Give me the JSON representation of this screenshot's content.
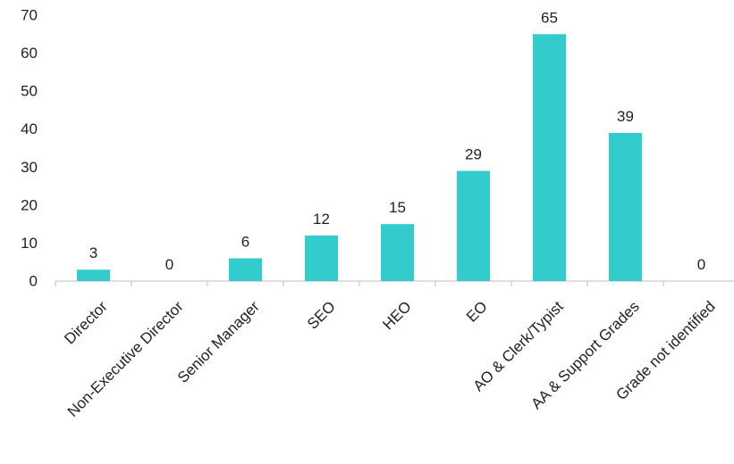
{
  "chart_data": {
    "type": "bar",
    "categories": [
      "Director",
      "Non-Executive Director",
      "Senior Manager",
      "SEO",
      "HEO",
      "EO",
      "AO & Clerk/Typist",
      "AA & Support Grades",
      "Grade not identified"
    ],
    "values": [
      3,
      0,
      6,
      12,
      15,
      29,
      65,
      39,
      0
    ],
    "data_labels": [
      "3",
      "0",
      "6",
      "12",
      "15",
      "29",
      "65",
      "39",
      "0"
    ],
    "title": "",
    "xlabel": "",
    "ylabel": "",
    "ylim": [
      0,
      70
    ],
    "yticks": [
      0,
      10,
      20,
      30,
      40,
      50,
      60,
      70
    ],
    "ytick_labels": [
      "0",
      "10",
      "20",
      "30",
      "40",
      "50",
      "60",
      "70"
    ],
    "grid": false,
    "legend": "none",
    "bar_color": "#33CCCC",
    "axis_color": "#BFBFBF"
  }
}
